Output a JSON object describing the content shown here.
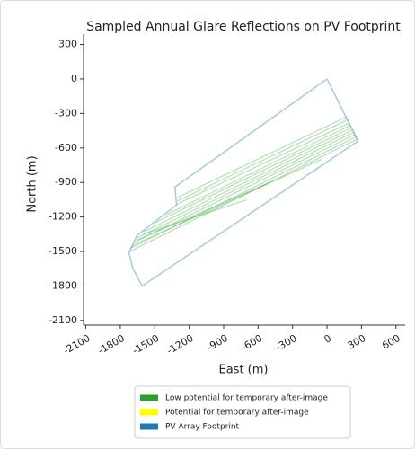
{
  "chart_data": {
    "type": "line",
    "title": "Sampled Annual Glare Reflections on PV Footprint",
    "xlabel": "East (m)",
    "ylabel": "North (m)",
    "xlim": [
      -2120,
      680
    ],
    "ylim": [
      -2140,
      390
    ],
    "xticks": [
      -2100,
      -1800,
      -1500,
      -1200,
      -900,
      -600,
      -300,
      0,
      300,
      600
    ],
    "yticks": [
      300,
      0,
      -300,
      -600,
      -900,
      -1200,
      -1500,
      -1800,
      -2100
    ],
    "legend": "lower center",
    "series": [
      {
        "name": "Low potential for temporary after-image",
        "color": "#2ca02c",
        "segments": [
          {
            "x": [
              -1300,
              170
            ],
            "y": [
              -1030,
              -330
            ]
          },
          {
            "x": [
              -1300,
              190
            ],
            "y": [
              -1060,
              -350
            ]
          },
          {
            "x": [
              -1310,
              200
            ],
            "y": [
              -1090,
              -380
            ]
          },
          {
            "x": [
              -1400,
              210
            ],
            "y": [
              -1180,
              -400
            ]
          },
          {
            "x": [
              -1500,
              220
            ],
            "y": [
              -1250,
              -420
            ]
          },
          {
            "x": [
              -1600,
              230
            ],
            "y": [
              -1330,
              -440
            ]
          },
          {
            "x": [
              -1650,
              240
            ],
            "y": [
              -1380,
              -460
            ]
          },
          {
            "x": [
              -1680,
              250
            ],
            "y": [
              -1420,
              -480
            ]
          },
          {
            "x": [
              -1710,
              260
            ],
            "y": [
              -1470,
              -500
            ]
          },
          {
            "x": [
              -1720,
              270
            ],
            "y": [
              -1500,
              -520
            ]
          },
          {
            "x": [
              -1700,
              -50
            ],
            "y": [
              -1450,
              -700
            ]
          },
          {
            "x": [
              -1650,
              -500
            ],
            "y": [
              -1400,
              -900
            ]
          },
          {
            "x": [
              -1600,
              -700
            ],
            "y": [
              -1350,
              -1050
            ]
          }
        ]
      },
      {
        "name": "Potential for temporary after-image",
        "color": "#ffff00",
        "segments": []
      },
      {
        "name": "PV Array Footprint",
        "color": "#1f77b4",
        "x": [
          0,
          270,
          -1610,
          -1690,
          -1725,
          -1655,
          -1310,
          -1325,
          0
        ],
        "y": [
          0,
          -540,
          -1800,
          -1650,
          -1510,
          -1360,
          -1095,
          -940,
          0
        ]
      }
    ]
  }
}
